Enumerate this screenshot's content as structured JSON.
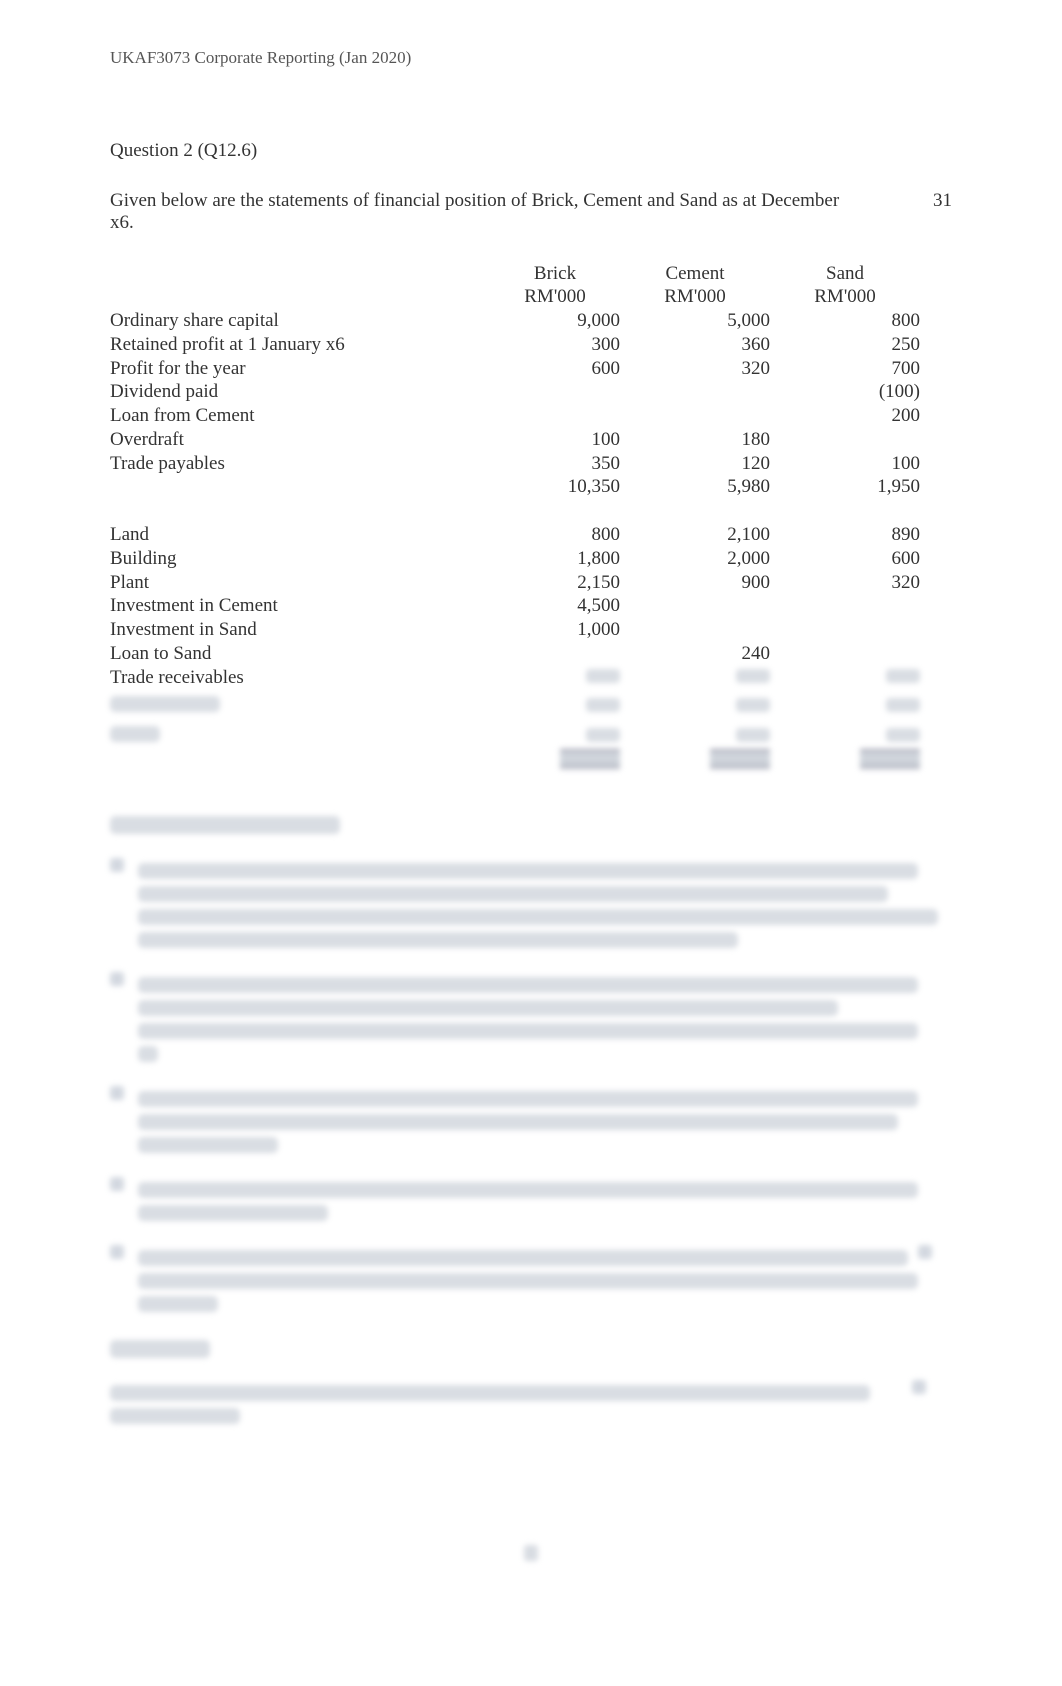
{
  "header": "UKAF3073 Corporate Reporting (Jan 2020)",
  "question_title": "Question 2 (Q12.6)",
  "intro_text": "Given below are the statements of financial position of Brick, Cement and Sand as at December   x6.",
  "intro_right": "31",
  "columns": {
    "name1": "Brick",
    "name2": "Cement",
    "name3": "Sand",
    "unit": "RM'000"
  },
  "rows_top": [
    {
      "label": "Ordinary share capital",
      "c1": "9,000",
      "c2": "5,000",
      "c3": "800"
    },
    {
      "label": "Retained profit at   1 January   x6",
      "c1": "300",
      "c2": "360",
      "c3": "250"
    },
    {
      "label": "Profit for the year",
      "c1": "600",
      "c2": "320",
      "c3": "700"
    },
    {
      "label": "Dividend paid",
      "c1": "",
      "c2": "",
      "c3": "(100)"
    },
    {
      "label": "Loan from Cement",
      "c1": "",
      "c2": "",
      "c3": "200"
    },
    {
      "label": "Overdraft",
      "c1": "100",
      "c2": "180",
      "c3": ""
    },
    {
      "label": "Trade payables",
      "c1": "350",
      "c2": "120",
      "c3": "100"
    },
    {
      "label": "",
      "c1": "10,350",
      "c2": "5,980",
      "c3": "1,950"
    }
  ],
  "rows_bottom": [
    {
      "label": "Land",
      "c1": "800",
      "c2": "2,100",
      "c3": "890"
    },
    {
      "label": "Building",
      "c1": "1,800",
      "c2": "2,000",
      "c3": "600"
    },
    {
      "label": "Plant",
      "c1": "2,150",
      "c2": "900",
      "c3": "320"
    },
    {
      "label": "Investment in Cement",
      "c1": "4,500",
      "c2": "",
      "c3": ""
    },
    {
      "label": "Investment in Sand",
      "c1": "1,000",
      "c2": "",
      "c3": ""
    },
    {
      "label": "Loan to Sand",
      "c1": "",
      "c2": "240",
      "c3": ""
    },
    {
      "label": "Trade receivables",
      "c1": "",
      "c2": "",
      "c3": ""
    }
  ],
  "blur_widths": {
    "section_heading": 230,
    "note1": [
      780,
      750,
      800,
      600
    ],
    "note2": [
      780,
      700,
      780,
      20
    ],
    "note3": [
      780,
      760,
      140
    ],
    "note4": [
      780,
      190
    ],
    "note5": [
      770,
      780,
      80
    ],
    "required": 100,
    "final": [
      760,
      130
    ]
  }
}
